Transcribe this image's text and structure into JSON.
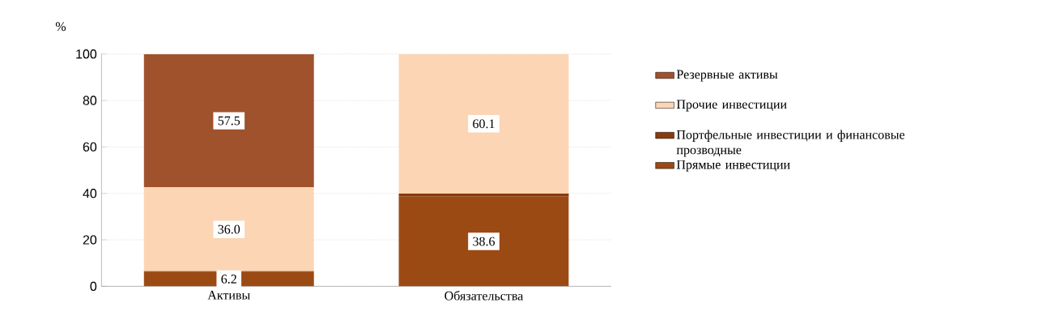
{
  "chart_data": {
    "type": "bar",
    "stacked": true,
    "ylabel": "%",
    "categories": [
      "Активы",
      "Обязательства"
    ],
    "series": [
      {
        "name": "Прямые инвестиции",
        "color": "#9c4a14",
        "values": [
          6.2,
          38.6
        ],
        "value_labels": [
          "6.2",
          "38.6"
        ]
      },
      {
        "name": "Портфельные инвестиции и финансовые прозводные",
        "color": "#8b3a0e",
        "values": [
          0.3,
          1.3
        ],
        "value_labels": [
          null,
          null
        ]
      },
      {
        "name": "Прочие инвестиции",
        "color": "#fcd5b4",
        "values": [
          36.0,
          60.1
        ],
        "value_labels": [
          "36.0",
          "60.1"
        ]
      },
      {
        "name": "Резервные активы",
        "color": "#a0522d",
        "values": [
          57.5,
          null
        ],
        "value_labels": [
          "57.5",
          null
        ]
      }
    ],
    "ylim": [
      0,
      100
    ],
    "yticks": [
      0,
      20,
      40,
      60,
      80,
      100
    ],
    "grid": "y",
    "legend": "right"
  }
}
